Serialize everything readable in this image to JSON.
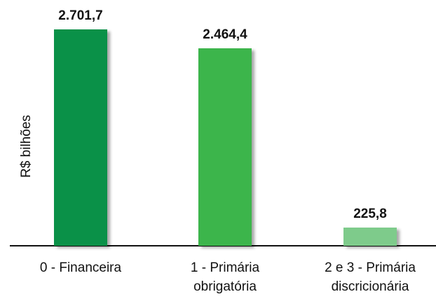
{
  "chart_data": {
    "type": "bar",
    "y_label": "R$ bilhões",
    "categories": [
      "0 - Financeira",
      "1 - Primária obrigatória",
      "2 e 3 - Primária discricionária"
    ],
    "values": [
      2701.7,
      2464.4,
      225.8
    ],
    "value_labels": [
      "2.701,7",
      "2.464,4",
      "225,8"
    ],
    "colors": [
      "#0a9148",
      "#3cb54b",
      "#7ecb8b"
    ],
    "ylim": [
      0,
      2800
    ]
  }
}
